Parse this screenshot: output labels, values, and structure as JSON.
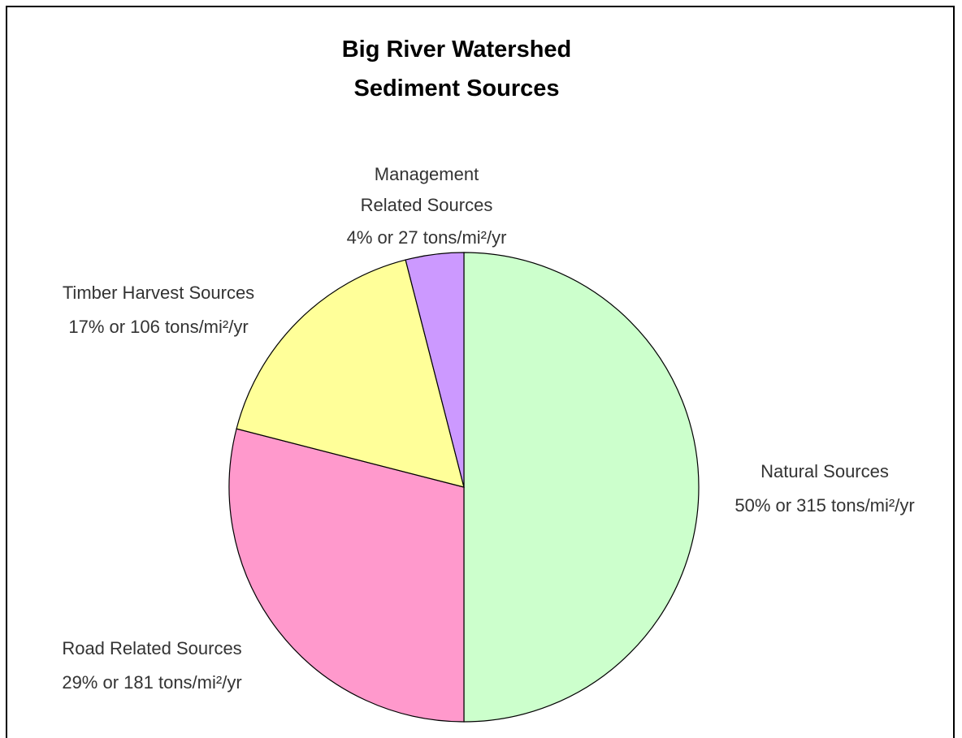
{
  "chart_data": {
    "type": "pie",
    "title": [
      "Big River Watershed",
      "Sediment Sources"
    ],
    "categories": [
      "Natural Sources",
      "Road Related Sources",
      "Timber Harvest Sources",
      "Management Related Sources"
    ],
    "values": [
      50,
      29,
      17,
      4
    ],
    "value_labels": [
      "50% or 315 tons/mi²/yr",
      "29% or 181 tons/mi²/yr",
      "17% or 106 tons/mi²/yr",
      "4% or 27 tons/mi²/yr"
    ],
    "colors": [
      "#ccffcc",
      "#ff99cc",
      "#ffff99",
      "#cc99ff"
    ]
  }
}
